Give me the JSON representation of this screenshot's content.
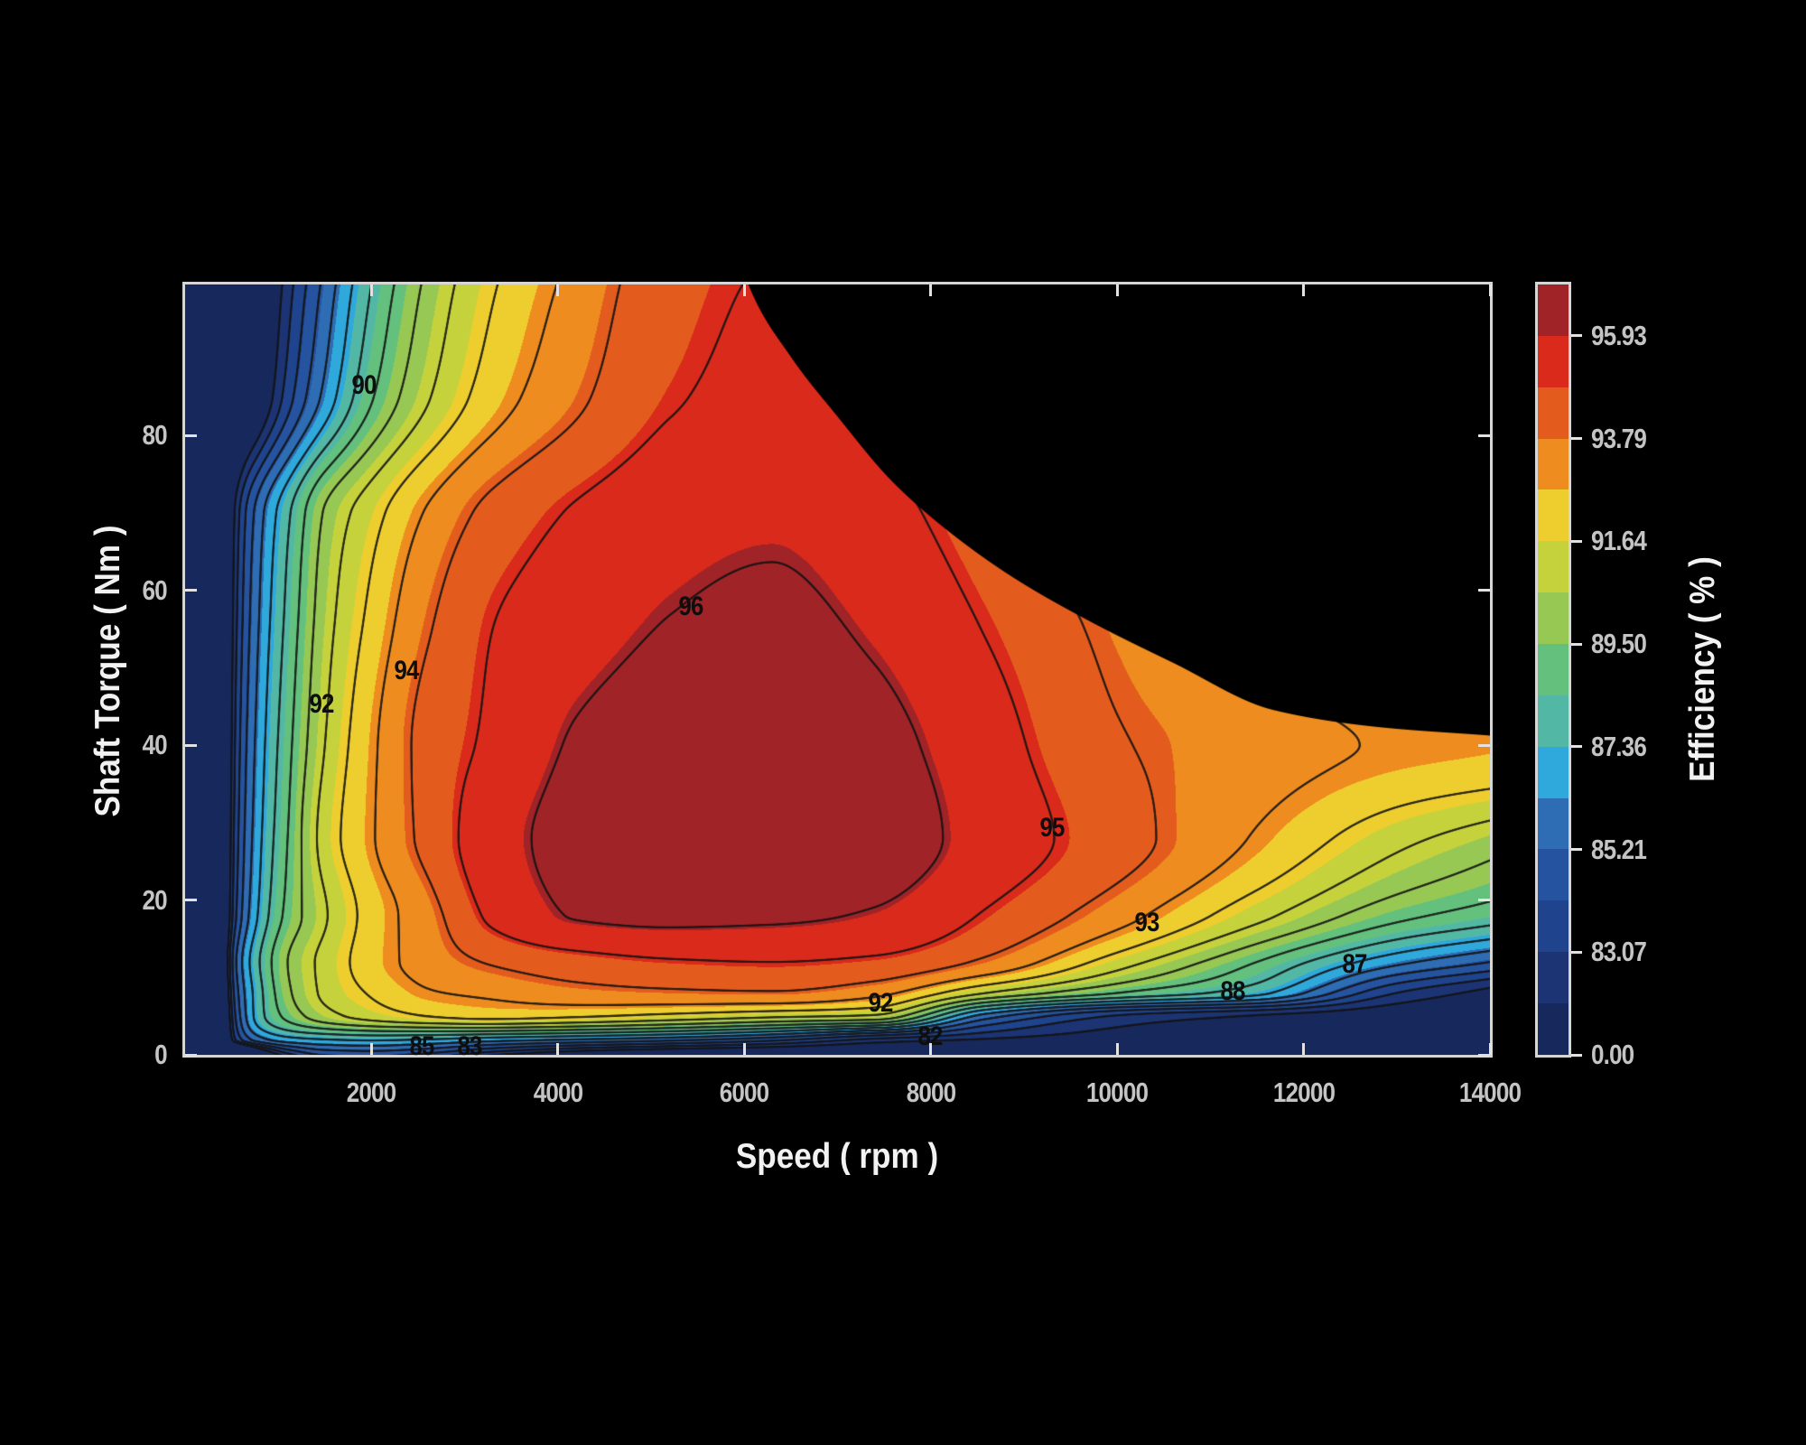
{
  "figure": {
    "background_color": "#000000",
    "frame_color": "#d6d6d6",
    "tick_text_color": "#c4c4c4",
    "label_text_color": "#f2f2f2"
  },
  "axes": {
    "x_label": "Speed ( rpm )",
    "y_label": "Shaft Torque ( Nm )",
    "x_ticks": [
      {
        "value": 2000,
        "label": "2000"
      },
      {
        "value": 4000,
        "label": "4000"
      },
      {
        "value": 6000,
        "label": "6000"
      },
      {
        "value": 8000,
        "label": "8000"
      },
      {
        "value": 10000,
        "label": "10000"
      },
      {
        "value": 12000,
        "label": "12000"
      },
      {
        "value": 14000,
        "label": "14000"
      }
    ],
    "y_ticks": [
      {
        "value": 0,
        "label": "0"
      },
      {
        "value": 20,
        "label": "20"
      },
      {
        "value": 40,
        "label": "40"
      },
      {
        "value": 60,
        "label": "60"
      },
      {
        "value": 80,
        "label": "80"
      }
    ]
  },
  "colorbar": {
    "title": "Efficiency ( % )",
    "ticks": [
      {
        "boundary_index": 0,
        "label": "0.00"
      },
      {
        "boundary_index": 2,
        "label": "83.07"
      },
      {
        "boundary_index": 4,
        "label": "85.21"
      },
      {
        "boundary_index": 6,
        "label": "87.36"
      },
      {
        "boundary_index": 8,
        "label": "89.50"
      },
      {
        "boundary_index": 10,
        "label": "91.64"
      },
      {
        "boundary_index": 12,
        "label": "93.79"
      },
      {
        "boundary_index": 14,
        "label": "95.93"
      }
    ]
  },
  "chart_data": {
    "type": "heatmap",
    "subtype": "filled_contour_efficiency_map",
    "xlabel": "Speed ( rpm )",
    "ylabel": "Shaft Torque ( Nm )",
    "zlabel": "Efficiency ( % )",
    "xlim": [
      0,
      14000
    ],
    "ylim": [
      0,
      99.5
    ],
    "fill_levels": [
      82,
      83.0714,
      84.1429,
      85.2143,
      86.2857,
      87.3571,
      88.4286,
      89.5,
      90.5714,
      91.6429,
      92.7143,
      93.7857,
      94.8571,
      95.9286,
      97.0
    ],
    "band_colors": [
      "#16285c",
      "#1c3474",
      "#1f448d",
      "#26539f",
      "#2e6cb4",
      "#2fa9dc",
      "#52b8a5",
      "#63c07d",
      "#97c854",
      "#c6d23c",
      "#eece2e",
      "#ee8c1f",
      "#e35c1e",
      "#d92a1b",
      "#a02327"
    ],
    "line_levels": [
      82,
      83,
      84,
      85,
      86,
      87,
      88,
      89,
      90,
      91,
      92,
      93,
      94,
      95,
      96
    ],
    "line_color": [
      18,
      18,
      18
    ],
    "grid": {
      "speed_rpm": [
        200,
        550,
        800,
        1100,
        1500,
        2000,
        2600,
        3300,
        4200,
        5200,
        6300,
        7400,
        8600,
        10000,
        11500,
        13000,
        14000
      ],
      "torque_nm": [
        0.5,
        2,
        5,
        8,
        12,
        18,
        28,
        40,
        55,
        70,
        85,
        99.5
      ],
      "efficiency_pct": [
        [
          60.0,
          76.0,
          81.0,
          83.6,
          84.8,
          85.0,
          84.5,
          83.2,
          82.0,
          81.2,
          80.7,
          80.2,
          79.8,
          79.3,
          78.8,
          78.2,
          77.9
        ],
        [
          63.0,
          83.2,
          85.6,
          86.6,
          87.0,
          87.2,
          87.0,
          86.5,
          86.0,
          85.4,
          84.4,
          82.8,
          81.9,
          81.1,
          80.4,
          79.7,
          79.3
        ],
        [
          67.0,
          84.2,
          87.6,
          89.3,
          90.6,
          91.4,
          92.0,
          92.3,
          92.1,
          91.7,
          91.2,
          90.8,
          85.5,
          82.9,
          81.9,
          81.0,
          80.6
        ],
        [
          67.5,
          84.6,
          87.7,
          89.8,
          91.2,
          92.1,
          92.9,
          93.2,
          93.6,
          93.8,
          93.9,
          93.3,
          91.0,
          89.0,
          87.3,
          83.0,
          81.6
        ],
        [
          68.5,
          85.0,
          88.0,
          90.0,
          91.3,
          92.5,
          93.4,
          94.1,
          94.6,
          94.9,
          95.0,
          94.8,
          93.8,
          91.5,
          89.0,
          86.3,
          85.0
        ],
        [
          68.5,
          84.0,
          87.2,
          89.3,
          90.9,
          92.4,
          93.6,
          95.2,
          96.05,
          96.2,
          96.15,
          95.9,
          94.9,
          93.4,
          91.3,
          89.3,
          88.5
        ],
        [
          68.5,
          83.6,
          86.8,
          89.0,
          91.4,
          92.9,
          94.3,
          95.6,
          96.3,
          96.6,
          96.8,
          96.5,
          95.6,
          94.4,
          92.9,
          91.3,
          90.5
        ],
        [
          68.0,
          83.3,
          86.5,
          88.7,
          91.0,
          92.8,
          94.35,
          95.2,
          96.1,
          96.45,
          96.65,
          96.3,
          95.4,
          94.1,
          93.4,
          92.9,
          92.75
        ],
        [
          67.5,
          82.9,
          86.1,
          88.3,
          90.6,
          92.3,
          93.9,
          95.0,
          95.6,
          96.05,
          96.25,
          95.85,
          94.95,
          93.7,
          92.6,
          91.9,
          91.5
        ],
        [
          67.0,
          82.4,
          85.6,
          87.8,
          90.1,
          91.6,
          93.1,
          94.3,
          95.1,
          95.6,
          95.8,
          95.35,
          94.4,
          93.1,
          92.1,
          91.3,
          90.9
        ],
        [
          66.5,
          77.5,
          80.5,
          83.5,
          86.3,
          88.9,
          90.9,
          92.5,
          93.8,
          94.9,
          95.25,
          94.8,
          93.9,
          92.7,
          91.7,
          90.9,
          90.4
        ],
        [
          66.0,
          76.5,
          79.5,
          82.5,
          85.3,
          88.0,
          90.2,
          91.9,
          93.3,
          94.6,
          95.05,
          94.7,
          93.8,
          92.6,
          91.6,
          90.8,
          90.3
        ]
      ]
    },
    "max_torque_boundary": [
      [
        0,
        999
      ],
      [
        6045,
        99.5
      ],
      [
        6500,
        90.2
      ],
      [
        7000,
        82.5
      ],
      [
        7580,
        74.2
      ],
      [
        8200,
        67.6
      ],
      [
        8900,
        61.6
      ],
      [
        9700,
        56.1
      ],
      [
        10600,
        50.7
      ],
      [
        11676,
        44.6
      ],
      [
        12800,
        42.4
      ],
      [
        14000,
        41.3
      ]
    ],
    "contour_labels": [
      {
        "text": "90",
        "speed_rpm": 1920,
        "torque_nm": 86.4
      },
      {
        "text": "92",
        "speed_rpm": 1465,
        "torque_nm": 45.3
      },
      {
        "text": "94",
        "speed_rpm": 2375,
        "torque_nm": 49.6
      },
      {
        "text": "96",
        "speed_rpm": 5425,
        "torque_nm": 57.9
      },
      {
        "text": "95",
        "speed_rpm": 9300,
        "torque_nm": 29.3
      },
      {
        "text": "93",
        "speed_rpm": 10320,
        "torque_nm": 17.0
      },
      {
        "text": "92",
        "speed_rpm": 7460,
        "torque_nm": 6.6
      },
      {
        "text": "82",
        "speed_rpm": 7995,
        "torque_nm": 2.3
      },
      {
        "text": "88",
        "speed_rpm": 11240,
        "torque_nm": 8.2
      },
      {
        "text": "87",
        "speed_rpm": 12550,
        "torque_nm": 11.7
      },
      {
        "text": "85",
        "speed_rpm": 2540,
        "torque_nm": 1.0
      },
      {
        "text": "83",
        "speed_rpm": 3050,
        "torque_nm": 1.0
      }
    ]
  }
}
